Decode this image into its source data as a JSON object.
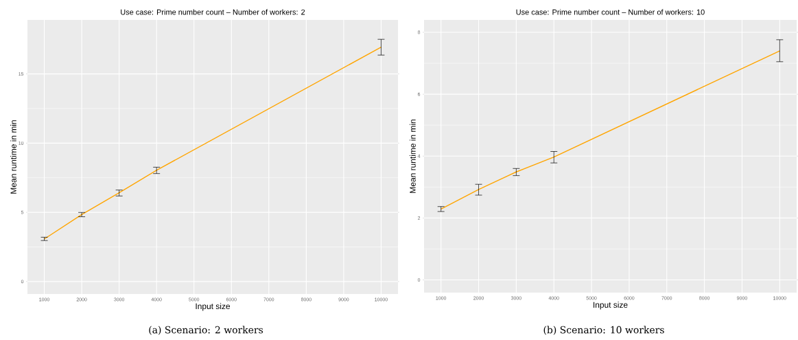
{
  "chart_data": [
    {
      "type": "line",
      "title": "Use case: Prime number count – Number of workers: 2",
      "xlabel": "Input size",
      "ylabel": "Mean runtime in min",
      "x": [
        1000,
        2000,
        3000,
        4000,
        10000
      ],
      "series": [
        {
          "color": "#ffa500",
          "values": [
            3.07,
            4.84,
            6.41,
            8.04,
            16.93
          ],
          "errors": [
            [
              2.96,
              3.2
            ],
            [
              4.68,
              4.99
            ],
            [
              6.18,
              6.61
            ],
            [
              7.8,
              8.26
            ],
            [
              16.36,
              17.5
            ]
          ]
        }
      ],
      "xlim": [
        550,
        10450
      ],
      "ylim": [
        -0.9,
        18.9
      ],
      "xticks": [
        1000,
        2000,
        3000,
        4000,
        5000,
        6000,
        7000,
        8000,
        9000,
        10000
      ],
      "yticks": [
        0,
        5,
        10,
        15
      ],
      "grid": true,
      "annotations": [
        "(a) Scenario: 2 workers"
      ]
    },
    {
      "type": "line",
      "title": "Use case: Prime number count – Number of workers: 10",
      "xlabel": "Input size",
      "ylabel": "Mean runtime in min",
      "x": [
        1000,
        2000,
        3000,
        4000,
        10000
      ],
      "series": [
        {
          "color": "#ffa500",
          "values": [
            2.29,
            2.92,
            3.49,
            3.97,
            7.4
          ],
          "errors": [
            [
              2.21,
              2.37
            ],
            [
              2.74,
              3.09
            ],
            [
              3.37,
              3.6
            ],
            [
              3.78,
              4.15
            ],
            [
              7.05,
              7.76
            ]
          ]
        }
      ],
      "xlim": [
        550,
        10450
      ],
      "ylim": [
        -0.41,
        8.4
      ],
      "xticks": [
        1000,
        2000,
        3000,
        4000,
        5000,
        6000,
        7000,
        8000,
        9000,
        10000
      ],
      "yticks": [
        0,
        2,
        4,
        6,
        8
      ],
      "grid": true,
      "annotations": [
        "(b) Scenario: 10 workers"
      ]
    }
  ]
}
